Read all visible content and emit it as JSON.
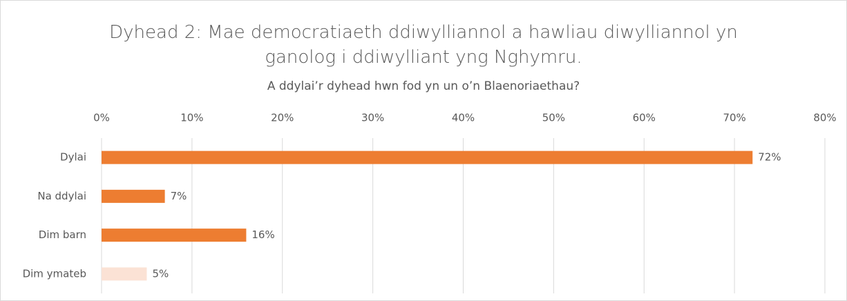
{
  "chart_data": {
    "type": "bar",
    "orientation": "horizontal",
    "title": "Dyhead 2: Mae democratiaeth ddiwylliannol a hawliau diwylliannol yn ganolog i ddiwylliant yng Nghymru.",
    "subtitle": "A ddylai’r dyhead hwn fod yn un o’n Blaenoriaethau?",
    "categories": [
      "Dylai",
      "Na ddylai",
      "Dim barn",
      "Dim ymateb"
    ],
    "values": [
      72,
      7,
      16,
      5
    ],
    "value_labels": [
      "72%",
      "7%",
      "16%",
      "5%"
    ],
    "colors": [
      "#ed7d31",
      "#ed7d31",
      "#ed7d31",
      "#fbe2d5"
    ],
    "xlim": [
      0,
      80
    ],
    "xticks": [
      {
        "value": 0,
        "label": "0%"
      },
      {
        "value": 10,
        "label": "10%"
      },
      {
        "value": 20,
        "label": "20%"
      },
      {
        "value": 30,
        "label": "30%"
      },
      {
        "value": 40,
        "label": "40%"
      },
      {
        "value": 50,
        "label": "50%"
      },
      {
        "value": 60,
        "label": "60%"
      },
      {
        "value": 70,
        "label": "70%"
      },
      {
        "value": 80,
        "label": "80%"
      }
    ],
    "grid": true
  }
}
